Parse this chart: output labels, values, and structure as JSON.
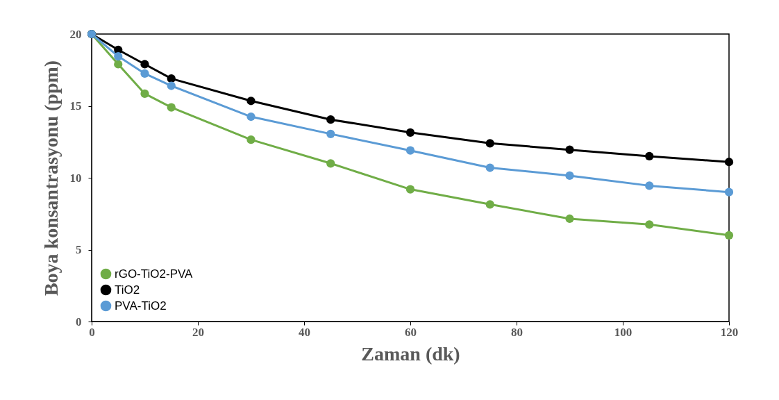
{
  "chart_data": {
    "type": "line",
    "xlabel": "Zaman (dk)",
    "ylabel": "Boya konsantrasyonu (ppm)",
    "x": [
      0,
      5,
      10,
      15,
      30,
      45,
      60,
      75,
      90,
      105,
      120
    ],
    "series": [
      {
        "name": "rGO-TiO2-PVA",
        "color": "#70ad47",
        "values": [
          20,
          17.9,
          15.85,
          14.9,
          12.65,
          11.0,
          9.2,
          8.15,
          7.15,
          6.75,
          6.0
        ]
      },
      {
        "name": "TiO2",
        "color": "#000000",
        "values": [
          20,
          18.9,
          17.9,
          16.9,
          15.35,
          14.05,
          13.15,
          12.4,
          11.95,
          11.5,
          11.1
        ]
      },
      {
        "name": "PVA-TiO2",
        "color": "#5b9bd5",
        "values": [
          20,
          18.45,
          17.25,
          16.4,
          14.25,
          13.05,
          11.9,
          10.7,
          10.15,
          9.45,
          9.0
        ]
      }
    ],
    "xlim": [
      0,
      120
    ],
    "xticks": [
      0,
      20,
      40,
      60,
      80,
      100,
      120
    ],
    "ylim": [
      0,
      20
    ],
    "yticks": [
      0,
      5,
      10,
      15,
      20
    ],
    "grid": false,
    "legend": "bottom left",
    "marker": "circle",
    "line_style": "solid"
  }
}
